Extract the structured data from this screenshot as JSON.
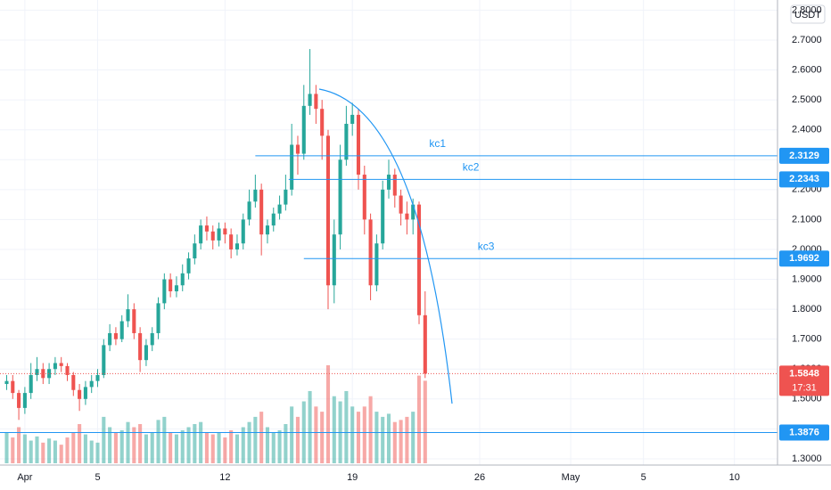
{
  "chart_data": {
    "type": "candlestick",
    "currency": "USDT",
    "up_color": "#26a69a",
    "down_color": "#ef5350",
    "level_color": "#2196f3",
    "x": [
      -3,
      -2,
      -1,
      0,
      1,
      2,
      3,
      4,
      5,
      6,
      7,
      8,
      9,
      10,
      11,
      12,
      13,
      14,
      15,
      16,
      17,
      18,
      19,
      20,
      21,
      22,
      23,
      24,
      25,
      26,
      27,
      28,
      29,
      30,
      31,
      32,
      33,
      34,
      35,
      36,
      37,
      38,
      39,
      40,
      41,
      42,
      43,
      44,
      45,
      46,
      47,
      48,
      49,
      50,
      51,
      52,
      53,
      54,
      55,
      56,
      57,
      58,
      59,
      60,
      61,
      62,
      63,
      64,
      65,
      66
    ],
    "open": [
      1.55,
      1.56,
      1.52,
      1.47,
      1.52,
      1.58,
      1.6,
      1.57,
      1.6,
      1.62,
      1.61,
      1.58,
      1.53,
      1.5,
      1.54,
      1.56,
      1.58,
      1.68,
      1.72,
      1.7,
      1.76,
      1.8,
      1.72,
      1.63,
      1.68,
      1.72,
      1.82,
      1.9,
      1.86,
      1.88,
      1.92,
      1.97,
      2.02,
      2.08,
      2.06,
      2.03,
      2.07,
      2.05,
      2.0,
      2.02,
      2.1,
      2.16,
      2.2,
      2.05,
      2.08,
      2.12,
      2.15,
      2.2,
      2.35,
      2.32,
      2.48,
      2.52,
      2.47,
      2.38,
      1.88,
      2.05,
      2.3,
      2.42,
      2.45,
      2.25,
      2.1,
      1.88,
      2.02,
      2.2,
      2.25,
      2.18,
      2.12,
      2.1,
      2.15,
      1.78
    ],
    "high": [
      1.58,
      1.58,
      1.53,
      1.54,
      1.62,
      1.64,
      1.62,
      1.62,
      1.64,
      1.64,
      1.62,
      1.59,
      1.55,
      1.56,
      1.58,
      1.6,
      1.7,
      1.75,
      1.74,
      1.78,
      1.85,
      1.82,
      1.74,
      1.7,
      1.74,
      1.84,
      1.92,
      1.92,
      1.91,
      1.95,
      1.99,
      2.05,
      2.1,
      2.11,
      2.08,
      2.09,
      2.09,
      2.07,
      2.05,
      2.12,
      2.2,
      2.25,
      2.22,
      2.1,
      2.14,
      2.18,
      2.25,
      2.42,
      2.38,
      2.55,
      2.67,
      2.55,
      2.5,
      2.4,
      2.1,
      2.35,
      2.48,
      2.49,
      2.47,
      2.28,
      2.12,
      2.05,
      2.23,
      2.3,
      2.27,
      2.2,
      2.16,
      2.17,
      2.16,
      1.86
    ],
    "low": [
      1.53,
      1.5,
      1.43,
      1.45,
      1.5,
      1.56,
      1.55,
      1.55,
      1.58,
      1.59,
      1.56,
      1.51,
      1.46,
      1.48,
      1.52,
      1.54,
      1.57,
      1.66,
      1.68,
      1.69,
      1.74,
      1.7,
      1.59,
      1.61,
      1.66,
      1.7,
      1.8,
      1.84,
      1.84,
      1.86,
      1.9,
      1.95,
      2.0,
      2.03,
      2.0,
      2.01,
      2.02,
      1.97,
      1.98,
      2.0,
      2.08,
      2.14,
      1.98,
      2.02,
      2.06,
      2.1,
      2.13,
      2.18,
      2.25,
      2.3,
      2.45,
      2.42,
      2.3,
      1.8,
      1.82,
      2.0,
      2.28,
      2.38,
      2.2,
      2.05,
      1.83,
      1.86,
      2.0,
      2.17,
      2.14,
      2.08,
      2.05,
      2.05,
      1.75,
      1.57
    ],
    "close": [
      1.56,
      1.52,
      1.47,
      1.52,
      1.58,
      1.6,
      1.57,
      1.6,
      1.62,
      1.61,
      1.58,
      1.53,
      1.5,
      1.54,
      1.56,
      1.58,
      1.68,
      1.72,
      1.7,
      1.76,
      1.8,
      1.72,
      1.63,
      1.68,
      1.72,
      1.82,
      1.9,
      1.86,
      1.88,
      1.92,
      1.97,
      2.02,
      2.08,
      2.06,
      2.03,
      2.07,
      2.05,
      2.0,
      2.02,
      2.1,
      2.16,
      2.2,
      2.05,
      2.08,
      2.12,
      2.15,
      2.2,
      2.35,
      2.32,
      2.48,
      2.52,
      2.47,
      2.38,
      1.88,
      2.05,
      2.3,
      2.42,
      2.45,
      2.25,
      2.1,
      1.88,
      2.02,
      2.2,
      2.25,
      2.18,
      2.12,
      2.1,
      2.15,
      1.78,
      1.5848
    ],
    "volume": [
      30,
      25,
      35,
      28,
      22,
      26,
      20,
      24,
      22,
      18,
      25,
      30,
      38,
      28,
      22,
      20,
      45,
      35,
      30,
      32,
      40,
      35,
      38,
      28,
      30,
      42,
      45,
      30,
      28,
      32,
      35,
      38,
      40,
      30,
      28,
      30,
      25,
      32,
      28,
      35,
      40,
      45,
      50,
      35,
      30,
      32,
      38,
      55,
      45,
      60,
      70,
      55,
      50,
      95,
      65,
      60,
      70,
      55,
      50,
      55,
      65,
      50,
      45,
      48,
      40,
      42,
      45,
      50,
      85,
      80
    ],
    "xlim": [
      -4.1,
      124.1
    ],
    "xticks": [
      {
        "value": 0,
        "label": "Apr"
      },
      {
        "value": 12,
        "label": "5"
      },
      {
        "value": 33,
        "label": "12"
      },
      {
        "value": 54,
        "label": "19"
      },
      {
        "value": 75,
        "label": "26"
      },
      {
        "value": 90,
        "label": "May"
      },
      {
        "value": 102,
        "label": "5"
      },
      {
        "value": 117,
        "label": "10"
      }
    ],
    "ylim": [
      1.279,
      2.834
    ],
    "yticks": [
      {
        "value": 1.3,
        "label": "1.3000"
      },
      {
        "value": 1.4,
        "label": "1.4000"
      },
      {
        "value": 1.5,
        "label": "1.5000"
      },
      {
        "value": 1.6,
        "label": "1.6000"
      },
      {
        "value": 1.7,
        "label": "1.7000"
      },
      {
        "value": 1.8,
        "label": "1.8000"
      },
      {
        "value": 1.9,
        "label": "1.9000"
      },
      {
        "value": 2.0,
        "label": "2.0000"
      },
      {
        "value": 2.1,
        "label": "2.1000"
      },
      {
        "value": 2.2,
        "label": "2.2000"
      },
      {
        "value": 2.3,
        "label": "2.3000"
      },
      {
        "value": 2.4,
        "label": "2.4000"
      },
      {
        "value": 2.5,
        "label": "2.5000"
      },
      {
        "value": 2.6,
        "label": "2.6000"
      },
      {
        "value": 2.7,
        "label": "2.7000"
      },
      {
        "value": 2.8,
        "label": "2.8000"
      }
    ],
    "levels": [
      {
        "name": "kc1",
        "value": 2.3129,
        "from": 38
      },
      {
        "name": "kc2",
        "value": 2.2343,
        "from": 43.5
      },
      {
        "name": "kc3",
        "value": 1.9692,
        "from": 46
      },
      {
        "value": 1.3876,
        "from": -4.1
      }
    ],
    "last_price": {
      "value": 1.5848,
      "countdown": "17:31"
    }
  }
}
